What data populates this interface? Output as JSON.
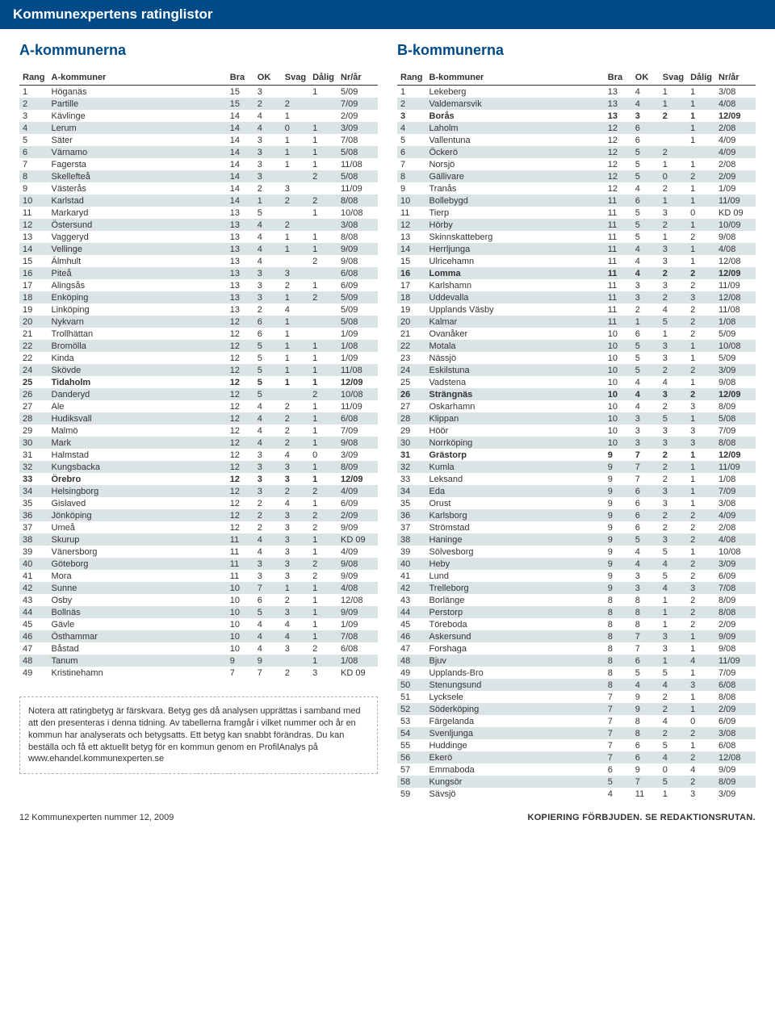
{
  "header": "Kommunexpertens ratinglistor",
  "sectionA": "A-kommunerna",
  "sectionB": "B-kommunerna",
  "colsA": [
    "Rang",
    "A-kommuner",
    "Bra",
    "OK",
    "Svag",
    "Dålig",
    "Nr/år"
  ],
  "colsB": [
    "Rang",
    "B-kommuner",
    "Bra",
    "OK",
    "Svag",
    "Dålig",
    "Nr/år"
  ],
  "rowsA": [
    [
      "1",
      "Höganäs",
      "15",
      "3",
      "",
      "1",
      "5/09",
      0,
      0
    ],
    [
      "2",
      "Partille",
      "15",
      "2",
      "2",
      "",
      "7/09",
      1,
      0
    ],
    [
      "3",
      "Kävlinge",
      "14",
      "4",
      "1",
      "",
      "2/09",
      0,
      0
    ],
    [
      "4",
      "Lerum",
      "14",
      "4",
      "0",
      "1",
      "3/09",
      1,
      0
    ],
    [
      "5",
      "Säter",
      "14",
      "3",
      "1",
      "1",
      "7/08",
      0,
      0
    ],
    [
      "6",
      "Värnamo",
      "14",
      "3",
      "1",
      "1",
      "5/08",
      1,
      0
    ],
    [
      "7",
      "Fagersta",
      "14",
      "3",
      "1",
      "1",
      "11/08",
      0,
      0
    ],
    [
      "8",
      "Skellefteå",
      "14",
      "3",
      "",
      "2",
      "5/08",
      1,
      0
    ],
    [
      "9",
      "Västerås",
      "14",
      "2",
      "3",
      "",
      "11/09",
      0,
      0
    ],
    [
      "10",
      "Karlstad",
      "14",
      "1",
      "2",
      "2",
      "8/08",
      1,
      0
    ],
    [
      "11",
      "Markaryd",
      "13",
      "5",
      "",
      "1",
      "10/08",
      0,
      0
    ],
    [
      "12",
      "Östersund",
      "13",
      "4",
      "2",
      "",
      "3/08",
      1,
      0
    ],
    [
      "13",
      "Vaggeryd",
      "13",
      "4",
      "1",
      "1",
      "8/08",
      0,
      0
    ],
    [
      "14",
      "Vellinge",
      "13",
      "4",
      "1",
      "1",
      "9/09",
      1,
      0
    ],
    [
      "15",
      "Älmhult",
      "13",
      "4",
      "",
      "2",
      "9/08",
      0,
      0
    ],
    [
      "16",
      "Piteå",
      "13",
      "3",
      "3",
      "",
      "6/08",
      1,
      0
    ],
    [
      "17",
      "Alingsås",
      "13",
      "3",
      "2",
      "1",
      "6/09",
      0,
      0
    ],
    [
      "18",
      "Enköping",
      "13",
      "3",
      "1",
      "2",
      "5/09",
      1,
      0
    ],
    [
      "19",
      "Linköping",
      "13",
      "2",
      "4",
      "",
      "5/09",
      0,
      0
    ],
    [
      "20",
      "Nykvarn",
      "12",
      "6",
      "1",
      "",
      "5/08",
      1,
      0
    ],
    [
      "21",
      "Trollhättan",
      "12",
      "6",
      "1",
      "",
      "1/09",
      0,
      0
    ],
    [
      "22",
      "Bromölla",
      "12",
      "5",
      "1",
      "1",
      "1/08",
      1,
      0
    ],
    [
      "22",
      "Kinda",
      "12",
      "5",
      "1",
      "1",
      "1/09",
      0,
      0
    ],
    [
      "24",
      "Skövde",
      "12",
      "5",
      "1",
      "1",
      "11/08",
      1,
      0
    ],
    [
      "25",
      "Tidaholm",
      "12",
      "5",
      "1",
      "1",
      "12/09",
      0,
      1
    ],
    [
      "26",
      "Danderyd",
      "12",
      "5",
      "",
      "2",
      "10/08",
      1,
      0
    ],
    [
      "27",
      "Ale",
      "12",
      "4",
      "2",
      "1",
      "11/09",
      0,
      0
    ],
    [
      "28",
      "Hudiksvall",
      "12",
      "4",
      "2",
      "1",
      "6/08",
      1,
      0
    ],
    [
      "29",
      "Malmö",
      "12",
      "4",
      "2",
      "1",
      "7/09",
      0,
      0
    ],
    [
      "30",
      "Mark",
      "12",
      "4",
      "2",
      "1",
      "9/08",
      1,
      0
    ],
    [
      "31",
      "Halmstad",
      "12",
      "3",
      "4",
      "0",
      "3/09",
      0,
      0
    ],
    [
      "32",
      "Kungsbacka",
      "12",
      "3",
      "3",
      "1",
      "8/09",
      1,
      0
    ],
    [
      "33",
      "Örebro",
      "12",
      "3",
      "3",
      "1",
      "12/09",
      0,
      1
    ],
    [
      "34",
      "Helsingborg",
      "12",
      "3",
      "2",
      "2",
      "4/09",
      1,
      0
    ],
    [
      "35",
      "Gislaved",
      "12",
      "2",
      "4",
      "1",
      "6/09",
      0,
      0
    ],
    [
      "36",
      "Jönköping",
      "12",
      "2",
      "3",
      "2",
      "2/09",
      1,
      0
    ],
    [
      "37",
      "Umeå",
      "12",
      "2",
      "3",
      "2",
      "9/09",
      0,
      0
    ],
    [
      "38",
      "Skurup",
      "11",
      "4",
      "3",
      "1",
      "KD 09",
      1,
      0
    ],
    [
      "39",
      "Vänersborg",
      "11",
      "4",
      "3",
      "1",
      "4/09",
      0,
      0
    ],
    [
      "40",
      "Göteborg",
      "11",
      "3",
      "3",
      "2",
      "9/08",
      1,
      0
    ],
    [
      "41",
      "Mora",
      "11",
      "3",
      "3",
      "2",
      "9/09",
      0,
      0
    ],
    [
      "42",
      "Sunne",
      "10",
      "7",
      "1",
      "1",
      "4/08",
      1,
      0
    ],
    [
      "43",
      "Osby",
      "10",
      "6",
      "2",
      "1",
      "12/08",
      0,
      0
    ],
    [
      "44",
      "Bollnäs",
      "10",
      "5",
      "3",
      "1",
      "9/09",
      1,
      0
    ],
    [
      "45",
      "Gävle",
      "10",
      "4",
      "4",
      "1",
      "1/09",
      0,
      0
    ],
    [
      "46",
      "Östhammar",
      "10",
      "4",
      "4",
      "1",
      "7/08",
      1,
      0
    ],
    [
      "47",
      "Båstad",
      "10",
      "4",
      "3",
      "2",
      "6/08",
      0,
      0
    ],
    [
      "48",
      "Tanum",
      "9",
      "9",
      "",
      "1",
      "1/08",
      1,
      0
    ],
    [
      "49",
      "Kristinehamn",
      "7",
      "7",
      "2",
      "3",
      "KD 09",
      0,
      0
    ]
  ],
  "rowsB": [
    [
      "1",
      "Lekeberg",
      "13",
      "4",
      "1",
      "1",
      "3/08",
      0,
      0
    ],
    [
      "2",
      "Valdemarsvik",
      "13",
      "4",
      "1",
      "1",
      "4/08",
      1,
      0
    ],
    [
      "3",
      "Borås",
      "13",
      "3",
      "2",
      "1",
      "12/09",
      0,
      1
    ],
    [
      "4",
      "Laholm",
      "12",
      "6",
      "",
      "1",
      "2/08",
      1,
      0
    ],
    [
      "5",
      "Vallentuna",
      "12",
      "6",
      "",
      "1",
      "4/09",
      0,
      0
    ],
    [
      "6",
      "Öckerö",
      "12",
      "5",
      "2",
      "",
      "4/09",
      1,
      0
    ],
    [
      "7",
      "Norsjö",
      "12",
      "5",
      "1",
      "1",
      "2/08",
      0,
      0
    ],
    [
      "8",
      "Gällivare",
      "12",
      "5",
      "0",
      "2",
      "2/09",
      1,
      0
    ],
    [
      "9",
      "Tranås",
      "12",
      "4",
      "2",
      "1",
      "1/09",
      0,
      0
    ],
    [
      "10",
      "Bollebygd",
      "11",
      "6",
      "1",
      "1",
      "11/09",
      1,
      0
    ],
    [
      "11",
      "Tierp",
      "11",
      "5",
      "3",
      "0",
      "KD 09",
      0,
      0
    ],
    [
      "12",
      "Hörby",
      "11",
      "5",
      "2",
      "1",
      "10/09",
      1,
      0
    ],
    [
      "13",
      "Skinnskatteberg",
      "11",
      "5",
      "1",
      "2",
      "9/08",
      0,
      0
    ],
    [
      "14",
      "Herrljunga",
      "11",
      "4",
      "3",
      "1",
      "4/08",
      1,
      0
    ],
    [
      "15",
      "Ulricehamn",
      "11",
      "4",
      "3",
      "1",
      "12/08",
      0,
      0
    ],
    [
      "16",
      "Lomma",
      "11",
      "4",
      "2",
      "2",
      "12/09",
      1,
      1
    ],
    [
      "17",
      "Karlshamn",
      "11",
      "3",
      "3",
      "2",
      "11/09",
      0,
      0
    ],
    [
      "18",
      "Uddevalla",
      "11",
      "3",
      "2",
      "3",
      "12/08",
      1,
      0
    ],
    [
      "19",
      "Upplands Väsby",
      "11",
      "2",
      "4",
      "2",
      "11/08",
      0,
      0
    ],
    [
      "20",
      "Kalmar",
      "11",
      "1",
      "5",
      "2",
      "1/08",
      1,
      0
    ],
    [
      "21",
      "Ovanåker",
      "10",
      "6",
      "1",
      "2",
      "5/09",
      0,
      0
    ],
    [
      "22",
      "Motala",
      "10",
      "5",
      "3",
      "1",
      "10/08",
      1,
      0
    ],
    [
      "23",
      "Nässjö",
      "10",
      "5",
      "3",
      "1",
      "5/09",
      0,
      0
    ],
    [
      "24",
      "Eskilstuna",
      "10",
      "5",
      "2",
      "2",
      "3/09",
      1,
      0
    ],
    [
      "25",
      "Vadstena",
      "10",
      "4",
      "4",
      "1",
      "9/08",
      0,
      0
    ],
    [
      "26",
      "Strängnäs",
      "10",
      "4",
      "3",
      "2",
      "12/09",
      1,
      1
    ],
    [
      "27",
      "Oskarhamn",
      "10",
      "4",
      "2",
      "3",
      "8/09",
      0,
      0
    ],
    [
      "28",
      "Klippan",
      "10",
      "3",
      "5",
      "1",
      "5/08",
      1,
      0
    ],
    [
      "29",
      "Höör",
      "10",
      "3",
      "3",
      "3",
      "7/09",
      0,
      0
    ],
    [
      "30",
      "Norrköping",
      "10",
      "3",
      "3",
      "3",
      "8/08",
      1,
      0
    ],
    [
      "31",
      "Grästorp",
      "9",
      "7",
      "2",
      "1",
      "12/09",
      0,
      1
    ],
    [
      "32",
      "Kumla",
      "9",
      "7",
      "2",
      "1",
      "11/09",
      1,
      0
    ],
    [
      "33",
      "Leksand",
      "9",
      "7",
      "2",
      "1",
      "1/08",
      0,
      0
    ],
    [
      "34",
      "Eda",
      "9",
      "6",
      "3",
      "1",
      "7/09",
      1,
      0
    ],
    [
      "35",
      "Orust",
      "9",
      "6",
      "3",
      "1",
      "3/08",
      0,
      0
    ],
    [
      "36",
      "Karlsborg",
      "9",
      "6",
      "2",
      "2",
      "4/09",
      1,
      0
    ],
    [
      "37",
      "Strömstad",
      "9",
      "6",
      "2",
      "2",
      "2/08",
      0,
      0
    ],
    [
      "38",
      "Haninge",
      "9",
      "5",
      "3",
      "2",
      "4/08",
      1,
      0
    ],
    [
      "39",
      "Sölvesborg",
      "9",
      "4",
      "5",
      "1",
      "10/08",
      0,
      0
    ],
    [
      "40",
      "Heby",
      "9",
      "4",
      "4",
      "2",
      "3/09",
      1,
      0
    ],
    [
      "41",
      "Lund",
      "9",
      "3",
      "5",
      "2",
      "6/09",
      0,
      0
    ],
    [
      "42",
      "Trelleborg",
      "9",
      "3",
      "4",
      "3",
      "7/08",
      1,
      0
    ],
    [
      "43",
      "Borlänge",
      "8",
      "8",
      "1",
      "2",
      "8/09",
      0,
      0
    ],
    [
      "44",
      "Perstorp",
      "8",
      "8",
      "1",
      "2",
      "8/08",
      1,
      0
    ],
    [
      "45",
      "Töreboda",
      "8",
      "8",
      "1",
      "2",
      "2/09",
      0,
      0
    ],
    [
      "46",
      "Askersund",
      "8",
      "7",
      "3",
      "1",
      "9/09",
      1,
      0
    ],
    [
      "47",
      "Forshaga",
      "8",
      "7",
      "3",
      "1",
      "9/08",
      0,
      0
    ],
    [
      "48",
      "Bjuv",
      "8",
      "6",
      "1",
      "4",
      "11/09",
      1,
      0
    ],
    [
      "49",
      "Upplands-Bro",
      "8",
      "5",
      "5",
      "1",
      "7/09",
      0,
      0
    ],
    [
      "50",
      "Stenungsund",
      "8",
      "4",
      "4",
      "3",
      "6/08",
      1,
      0
    ],
    [
      "51",
      "Lycksele",
      "7",
      "9",
      "2",
      "1",
      "8/08",
      0,
      0
    ],
    [
      "52",
      "Söderköping",
      "7",
      "9",
      "2",
      "1",
      "2/09",
      1,
      0
    ],
    [
      "53",
      "Färgelanda",
      "7",
      "8",
      "4",
      "0",
      "6/09",
      0,
      0
    ],
    [
      "54",
      "Svenljunga",
      "7",
      "8",
      "2",
      "2",
      "3/08",
      1,
      0
    ],
    [
      "55",
      "Huddinge",
      "7",
      "6",
      "5",
      "1",
      "6/08",
      0,
      0
    ],
    [
      "56",
      "Ekerö",
      "7",
      "6",
      "4",
      "2",
      "12/08",
      1,
      0
    ],
    [
      "57",
      "Emmaboda",
      "6",
      "9",
      "0",
      "4",
      "9/09",
      0,
      0
    ],
    [
      "58",
      "Kungsör",
      "5",
      "7",
      "5",
      "2",
      "8/09",
      1,
      0
    ],
    [
      "59",
      "Sävsjö",
      "4",
      "11",
      "1",
      "3",
      "3/09",
      0,
      0
    ]
  ],
  "note": "Notera att ratingbetyg är färskvara. Betyg ges då analysen upprättas i samband med att den presenteras i denna tidning. Av tabellerna framgår i vilket nummer och år en kommun har analyserats och betygsatts. Ett betyg kan snabbt förändras. Du kan beställa och få ett aktuellt betyg för en kommun genom en ProfilAnalys på www.ehandel.kommunexperten.se",
  "footerLeft": "12    Kommunexperten nummer 12, 2009",
  "footerRight": "KOPIERING FÖRBJUDEN. SE REDAKTIONSRUTAN."
}
